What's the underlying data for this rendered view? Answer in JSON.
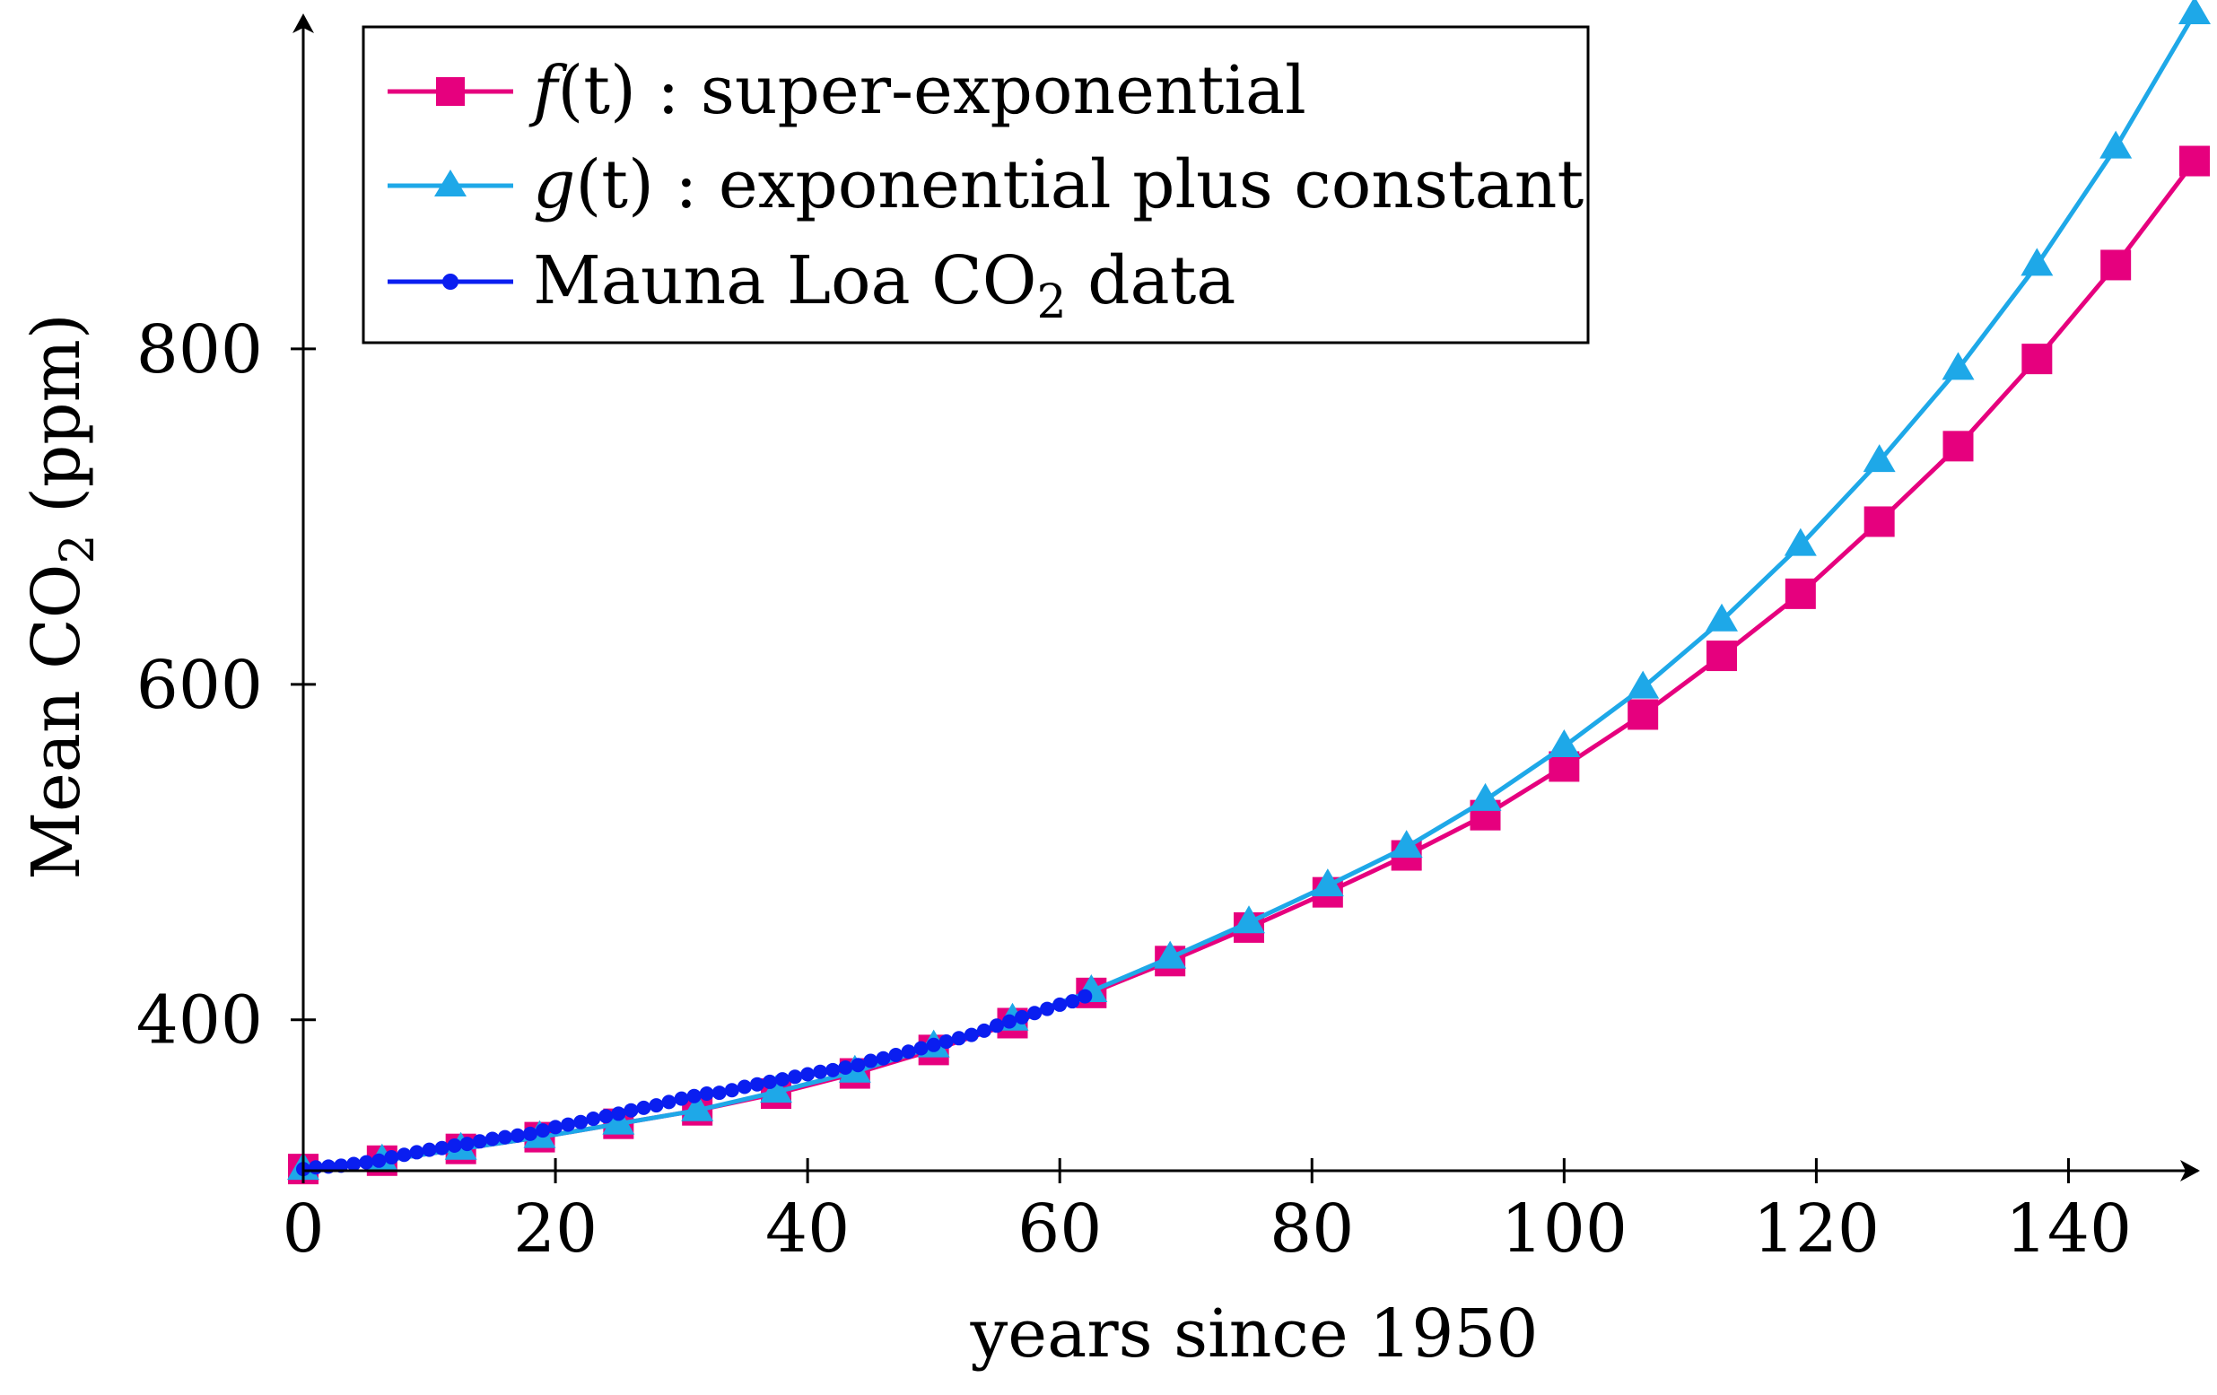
{
  "chart_data": {
    "type": "line",
    "xlabel": "years since 1950",
    "ylabel": "Mean CO",
    "ylabel_subscript": "2",
    "ylabel_unit": " (ppm)",
    "xlim": [
      0,
      150
    ],
    "ylim": [
      310,
      1000
    ],
    "xticks": [
      0,
      20,
      40,
      60,
      80,
      100,
      120,
      140
    ],
    "yticks": [
      400,
      600,
      800
    ],
    "grid": false,
    "legend_position": "top-left",
    "colors": {
      "f": "#e6007e",
      "g": "#1ea8e8",
      "mauna": "#0a1ef0"
    },
    "series": [
      {
        "key": "f",
        "name_italic": "f",
        "name_arg": "(t)",
        "name_rest": " : super-exponential",
        "marker": "square",
        "x": [
          0,
          6.25,
          12.5,
          18.75,
          25,
          31.25,
          37.5,
          43.75,
          50,
          56.25,
          62.5,
          68.75,
          75,
          81.25,
          87.5,
          93.75,
          100,
          106.25,
          112.5,
          118.75,
          125,
          131.25,
          137.5,
          143.75,
          150
        ],
        "y": [
          311,
          316,
          323,
          330,
          338,
          346,
          356,
          368,
          382,
          398,
          416,
          435,
          455,
          476,
          498,
          522,
          551,
          582,
          617,
          654,
          697,
          742,
          794,
          850,
          912
        ]
      },
      {
        "key": "g",
        "name_italic": "g",
        "name_arg": "(t)",
        "name_rest": " : exponential plus constant",
        "marker": "triangle",
        "x": [
          0,
          6.25,
          12.5,
          18.75,
          25,
          31.25,
          37.5,
          43.75,
          50,
          56.25,
          62.5,
          68.75,
          75,
          81.25,
          87.5,
          93.75,
          100,
          106.25,
          112.5,
          118.75,
          125,
          131.25,
          137.5,
          143.75,
          150
        ],
        "y": [
          311,
          316,
          323,
          330,
          338,
          346,
          357,
          369,
          384,
          400,
          417,
          437,
          458,
          480,
          503,
          531,
          563,
          598,
          638,
          683,
          733,
          788,
          850,
          920,
          1000
        ]
      },
      {
        "key": "mauna",
        "name_italic": "",
        "name_arg": "",
        "name_rest": "Mauna Loa CO",
        "name_sub": "2",
        "name_tail": " data",
        "marker": "dot",
        "x": [
          0,
          1,
          2,
          3,
          4,
          5,
          6,
          7,
          8,
          9,
          10,
          11,
          12,
          13,
          14,
          15,
          16,
          17,
          18,
          19,
          20,
          21,
          22,
          23,
          24,
          25,
          26,
          27,
          28,
          29,
          30,
          31,
          32,
          33,
          34,
          35,
          36,
          37,
          38,
          39,
          40,
          41,
          42,
          43,
          44,
          45,
          46,
          47,
          48,
          49,
          50,
          51,
          52,
          53,
          54,
          55,
          56,
          57,
          58,
          59,
          60,
          61,
          62
        ],
        "y": [
          311,
          312,
          312.5,
          313,
          314,
          315,
          316,
          318,
          319.5,
          321,
          322.5,
          323.5,
          325,
          326,
          327.5,
          329,
          330,
          331,
          332,
          334,
          336,
          337.5,
          339,
          341,
          342.5,
          344,
          346,
          347.5,
          349,
          351,
          353,
          354.5,
          356,
          356.5,
          358,
          360,
          361.5,
          363,
          364.5,
          366,
          367.5,
          369,
          370,
          371.5,
          373,
          375.5,
          377,
          379,
          381,
          383,
          385,
          387,
          389,
          391,
          393.5,
          396.5,
          399,
          401.5,
          404,
          406.5,
          409,
          411,
          414
        ]
      }
    ]
  }
}
